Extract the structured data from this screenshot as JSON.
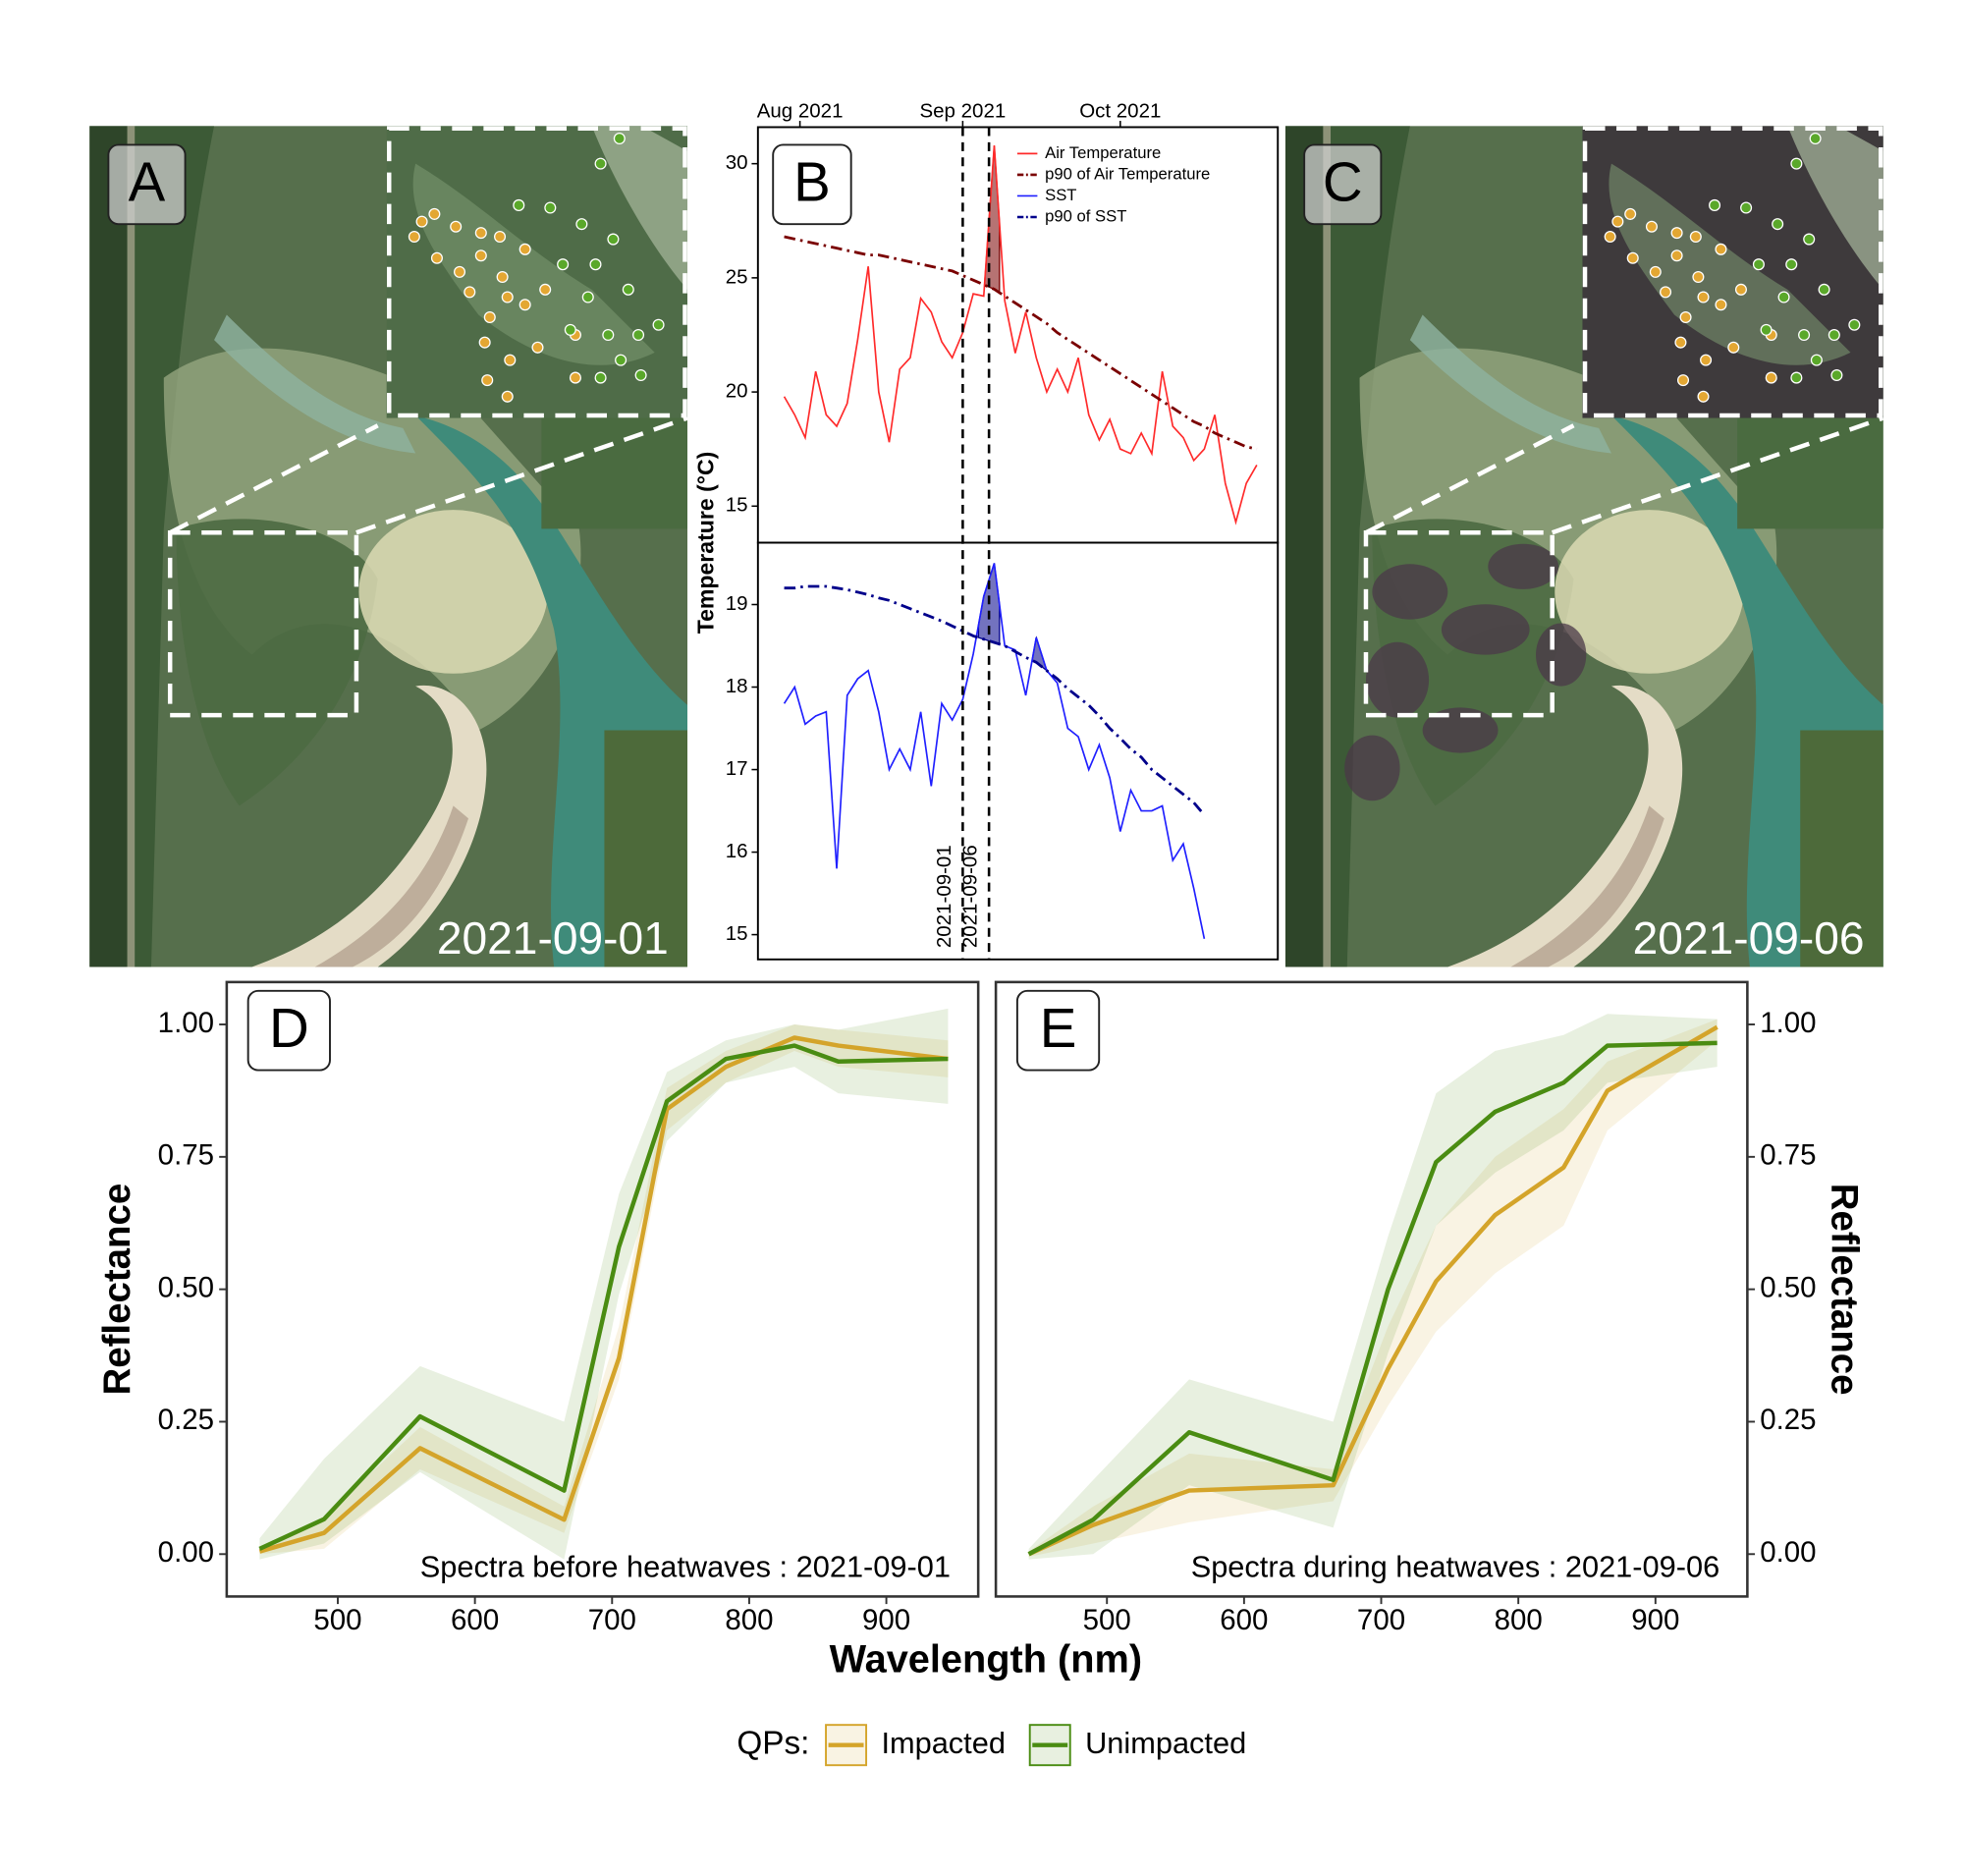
{
  "images": [
    {
      "label": "A",
      "date": "2021-09-01",
      "impacted": false
    },
    {
      "label": "C",
      "date": "2021-09-06",
      "impacted": true
    }
  ],
  "chart_data": [
    {
      "type": "line",
      "panel_label": "B",
      "y_label": "Temperature (°C)",
      "legend": "top-right",
      "x": [
        "2021-07-29",
        "2021-07-31",
        "2021-08-02",
        "2021-08-04",
        "2021-08-06",
        "2021-08-08",
        "2021-08-10",
        "2021-08-12",
        "2021-08-14",
        "2021-08-16",
        "2021-08-18",
        "2021-08-20",
        "2021-08-22",
        "2021-08-24",
        "2021-08-26",
        "2021-08-28",
        "2021-08-30",
        "2021-09-01",
        "2021-09-03",
        "2021-09-05",
        "2021-09-07",
        "2021-09-09",
        "2021-09-11",
        "2021-09-13",
        "2021-09-15",
        "2021-09-17",
        "2021-09-19",
        "2021-09-21",
        "2021-09-23",
        "2021-09-25",
        "2021-09-27",
        "2021-09-29",
        "2021-10-01",
        "2021-10-03",
        "2021-10-05",
        "2021-10-07",
        "2021-10-09",
        "2021-10-11",
        "2021-10-13",
        "2021-10-15",
        "2021-10-17",
        "2021-10-19",
        "2021-10-21",
        "2021-10-23",
        "2021-10-25",
        "2021-10-27"
      ],
      "xlim": [
        "2021-07-24",
        "2021-10-31"
      ],
      "xticks": [
        {
          "value": "2021-08-01",
          "label": "Aug 2021"
        },
        {
          "value": "2021-09-01",
          "label": "Sep 2021"
        },
        {
          "value": "2021-10-01",
          "label": "Oct 2021"
        }
      ],
      "vlines": [
        "2021-09-01",
        "2021-09-06"
      ],
      "panels": [
        {
          "ylim": [
            13.4,
            31.6
          ],
          "yticks": [
            15,
            20,
            25,
            30
          ],
          "heatwaves": [
            [
              "2021-09-05",
              "2021-09-08"
            ]
          ],
          "series": [
            {
              "name": "Air Temperature",
              "color": "#ff2a2a",
              "style": "solid",
              "values": [
                19.8,
                19.0,
                18.0,
                20.9,
                19.0,
                18.5,
                19.5,
                22.3,
                25.5,
                20.0,
                17.8,
                21.0,
                21.5,
                24.1,
                23.5,
                22.2,
                21.5,
                22.6,
                24.3,
                24.2,
                30.8,
                24.0,
                21.7,
                23.5,
                21.5,
                20.0,
                21.0,
                20.0,
                21.5,
                19.0,
                17.9,
                18.8,
                17.5,
                17.3,
                18.2,
                17.3,
                20.9,
                18.5,
                18.0,
                17.0,
                17.5,
                19.0,
                16.0,
                14.3,
                16.0,
                16.8
              ]
            },
            {
              "name": "p90 of Air Temperature",
              "color": "#7a0000",
              "style": "dashdot",
              "values": [
                26.8,
                26.7,
                26.6,
                26.5,
                26.4,
                26.3,
                26.2,
                26.1,
                26.0,
                26.0,
                25.9,
                25.8,
                25.7,
                25.6,
                25.5,
                25.4,
                25.3,
                25.1,
                24.9,
                24.7,
                24.5,
                24.2,
                23.9,
                23.6,
                23.3,
                23.0,
                22.6,
                22.3,
                22.0,
                21.7,
                21.4,
                21.1,
                20.8,
                20.5,
                20.2,
                19.9,
                19.6,
                19.3,
                19.0,
                18.7,
                18.5,
                18.2,
                18.0,
                17.8,
                17.6,
                17.5
              ]
            }
          ]
        },
        {
          "ylim": [
            14.7,
            19.75
          ],
          "yticks": [
            15,
            16,
            17,
            18,
            19
          ],
          "heatwaves": [
            [
              "2021-09-04",
              "2021-09-08"
            ],
            [
              "2021-09-14",
              "2021-09-17"
            ]
          ],
          "series": [
            {
              "name": "SST",
              "color": "#1f1fff",
              "style": "solid",
              "values": [
                17.8,
                18.0,
                17.55,
                17.65,
                17.7,
                15.8,
                17.9,
                18.1,
                18.2,
                17.7,
                17.0,
                17.25,
                17.0,
                17.7,
                16.8,
                17.8,
                17.6,
                17.85,
                18.4,
                19.1,
                19.5,
                18.5,
                18.45,
                17.9,
                18.6,
                18.2,
                18.05,
                17.5,
                17.4,
                17.0,
                17.3,
                16.9,
                16.25,
                16.75,
                16.5,
                16.5,
                16.56,
                15.9,
                16.1,
                15.56,
                14.95,
                null,
                null,
                null,
                null,
                null
              ]
            },
            {
              "name": "p90 of SST",
              "color": "#00008b",
              "style": "dashdot",
              "values": [
                19.2,
                19.2,
                19.22,
                19.22,
                19.22,
                19.2,
                19.18,
                19.15,
                19.12,
                19.08,
                19.05,
                19.0,
                18.95,
                18.9,
                18.85,
                18.8,
                18.74,
                18.68,
                18.62,
                18.58,
                18.54,
                18.5,
                18.43,
                18.36,
                18.3,
                18.2,
                18.1,
                17.98,
                17.88,
                17.78,
                17.65,
                17.5,
                17.38,
                17.25,
                17.15,
                17.0,
                16.9,
                16.8,
                16.7,
                16.6,
                16.45,
                null,
                null,
                null,
                null,
                null
              ]
            }
          ]
        }
      ]
    },
    {
      "type": "band",
      "panel_label": "D",
      "annotation": "Spectra before heatwaves : 2021-09-01",
      "y_label": "Reflectance",
      "y_axis": "left",
      "x": [
        443,
        490,
        560,
        665,
        705,
        740,
        783,
        833,
        865,
        945
      ],
      "xlim": [
        419,
        967
      ],
      "xticks": [
        500,
        600,
        700,
        800,
        900
      ],
      "ylim": [
        -0.08,
        1.08
      ],
      "yticks": [
        {
          "value": 0,
          "label": "0.00"
        },
        0.25,
        {
          "value": 0.5,
          "label": "0.50"
        },
        0.75,
        {
          "value": 1,
          "label": "1.00"
        }
      ],
      "series": [
        {
          "color": "#d4a42a",
          "values": [
            0.005,
            0.04,
            0.2,
            0.065,
            0.37,
            0.84,
            0.92,
            0.975,
            0.96,
            0.935
          ],
          "lower": [
            0.0,
            0.01,
            0.16,
            0.04,
            0.33,
            0.8,
            0.89,
            0.95,
            0.92,
            0.9
          ],
          "upper": [
            0.01,
            0.07,
            0.24,
            0.09,
            0.43,
            0.88,
            0.95,
            1.0,
            0.99,
            0.97
          ]
        },
        {
          "color": "#4a8c12",
          "values": [
            0.01,
            0.066,
            0.26,
            0.12,
            0.58,
            0.855,
            0.935,
            0.96,
            0.93,
            0.935
          ],
          "lower": [
            -0.01,
            0.02,
            0.155,
            -0.01,
            0.49,
            0.78,
            0.89,
            0.92,
            0.87,
            0.85
          ],
          "upper": [
            0.03,
            0.18,
            0.355,
            0.25,
            0.68,
            0.91,
            0.97,
            1.0,
            0.99,
            1.03
          ]
        }
      ]
    },
    {
      "type": "band",
      "panel_label": "E",
      "annotation": "Spectra during heatwaves : 2021-09-06",
      "y_label": "Reflectance",
      "y_axis": "right",
      "x": [
        443,
        490,
        560,
        665,
        705,
        740,
        783,
        833,
        865,
        945
      ],
      "xlim": [
        419,
        967
      ],
      "xticks": [
        500,
        600,
        700,
        800,
        900
      ],
      "ylim": [
        -0.08,
        1.08
      ],
      "yticks": [
        {
          "value": 0,
          "label": "0.00"
        },
        0.25,
        {
          "value": 0.5,
          "label": "0.50"
        },
        0.75,
        {
          "value": 1,
          "label": "1.00"
        }
      ],
      "series": [
        {
          "color": "#d4a42a",
          "values": [
            0.0,
            0.055,
            0.12,
            0.13,
            0.35,
            0.515,
            0.64,
            0.73,
            0.875,
            0.995
          ],
          "lower": [
            -0.005,
            0.02,
            0.06,
            0.1,
            0.28,
            0.42,
            0.53,
            0.62,
            0.8,
            0.97
          ],
          "upper": [
            0.005,
            0.09,
            0.19,
            0.16,
            0.43,
            0.62,
            0.75,
            0.84,
            0.93,
            1.01
          ]
        },
        {
          "color": "#4a8c12",
          "values": [
            0.0,
            0.065,
            0.23,
            0.14,
            0.5,
            0.74,
            0.835,
            0.89,
            0.96,
            0.965
          ],
          "lower": [
            -0.01,
            0.0,
            0.13,
            0.05,
            0.38,
            0.62,
            0.72,
            0.8,
            0.89,
            0.92
          ],
          "upper": [
            0.01,
            0.14,
            0.33,
            0.25,
            0.6,
            0.87,
            0.95,
            0.98,
            1.02,
            1.01
          ]
        }
      ]
    }
  ],
  "shared": {
    "x_label": "Wavelength (nm)",
    "legend_title": "QPs:",
    "legend": [
      {
        "name": "Impacted",
        "color": "#d4a42a"
      },
      {
        "name": "Unimpacted",
        "color": "#4a8c12"
      }
    ]
  }
}
